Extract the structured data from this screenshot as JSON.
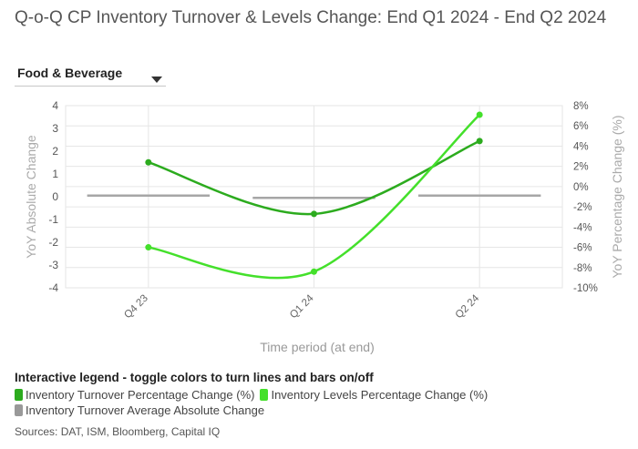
{
  "title": "Q-o-Q CP Inventory Turnover & Levels Change: End Q1 2024 - End Q2 2024",
  "dropdown": {
    "selected": "Food & Beverage",
    "icon": "caret-down-icon"
  },
  "legend": {
    "title": "Interactive legend - toggle colors to turn lines and bars on/off",
    "items": [
      {
        "label": "Inventory Turnover Percentage Change (%)",
        "color": "#2cab1e"
      },
      {
        "label": "Inventory Levels Percentage Change (%)",
        "color": "#44e02b"
      },
      {
        "label": "Inventory Turnover Average Absolute Change",
        "color": "#999999"
      }
    ]
  },
  "source": "Sources: DAT, ISM, Bloomberg, Capital IQ",
  "chart_data": {
    "type": "bar+line",
    "categories": [
      "Q4 23",
      "Q1 24",
      "Q2 24"
    ],
    "xlabel": "Time period (at end)",
    "ylabel_left": "YoY Absolute Change",
    "ylabel_right": "YoY Percentage Change (%)",
    "ylim_left": [
      -4,
      4
    ],
    "yticks_left": [
      "4",
      "3",
      "2",
      "1",
      "0",
      "-1",
      "-2",
      "-3",
      "-4"
    ],
    "ylim_right": [
      -10,
      8
    ],
    "yticks_right": [
      "8%",
      "6%",
      "4%",
      "2%",
      "0%",
      "-2%",
      "-4%",
      "-6%",
      "-8%",
      "-10%"
    ],
    "bars": {
      "name": "Inventory Turnover Average Absolute Change",
      "axis": "left",
      "color": "#a6a6a6",
      "values": [
        0.1,
        -0.1,
        0.1
      ]
    },
    "lines": [
      {
        "name": "Inventory Turnover Percentage Change (%)",
        "axis": "right",
        "color": "#2cab1e",
        "values": [
          2.4,
          -2.7,
          4.5
        ]
      },
      {
        "name": "Inventory Levels Percentage Change (%)",
        "axis": "right",
        "color": "#44e02b",
        "values": [
          -6.0,
          -8.4,
          7.1
        ]
      }
    ],
    "grid": true
  }
}
